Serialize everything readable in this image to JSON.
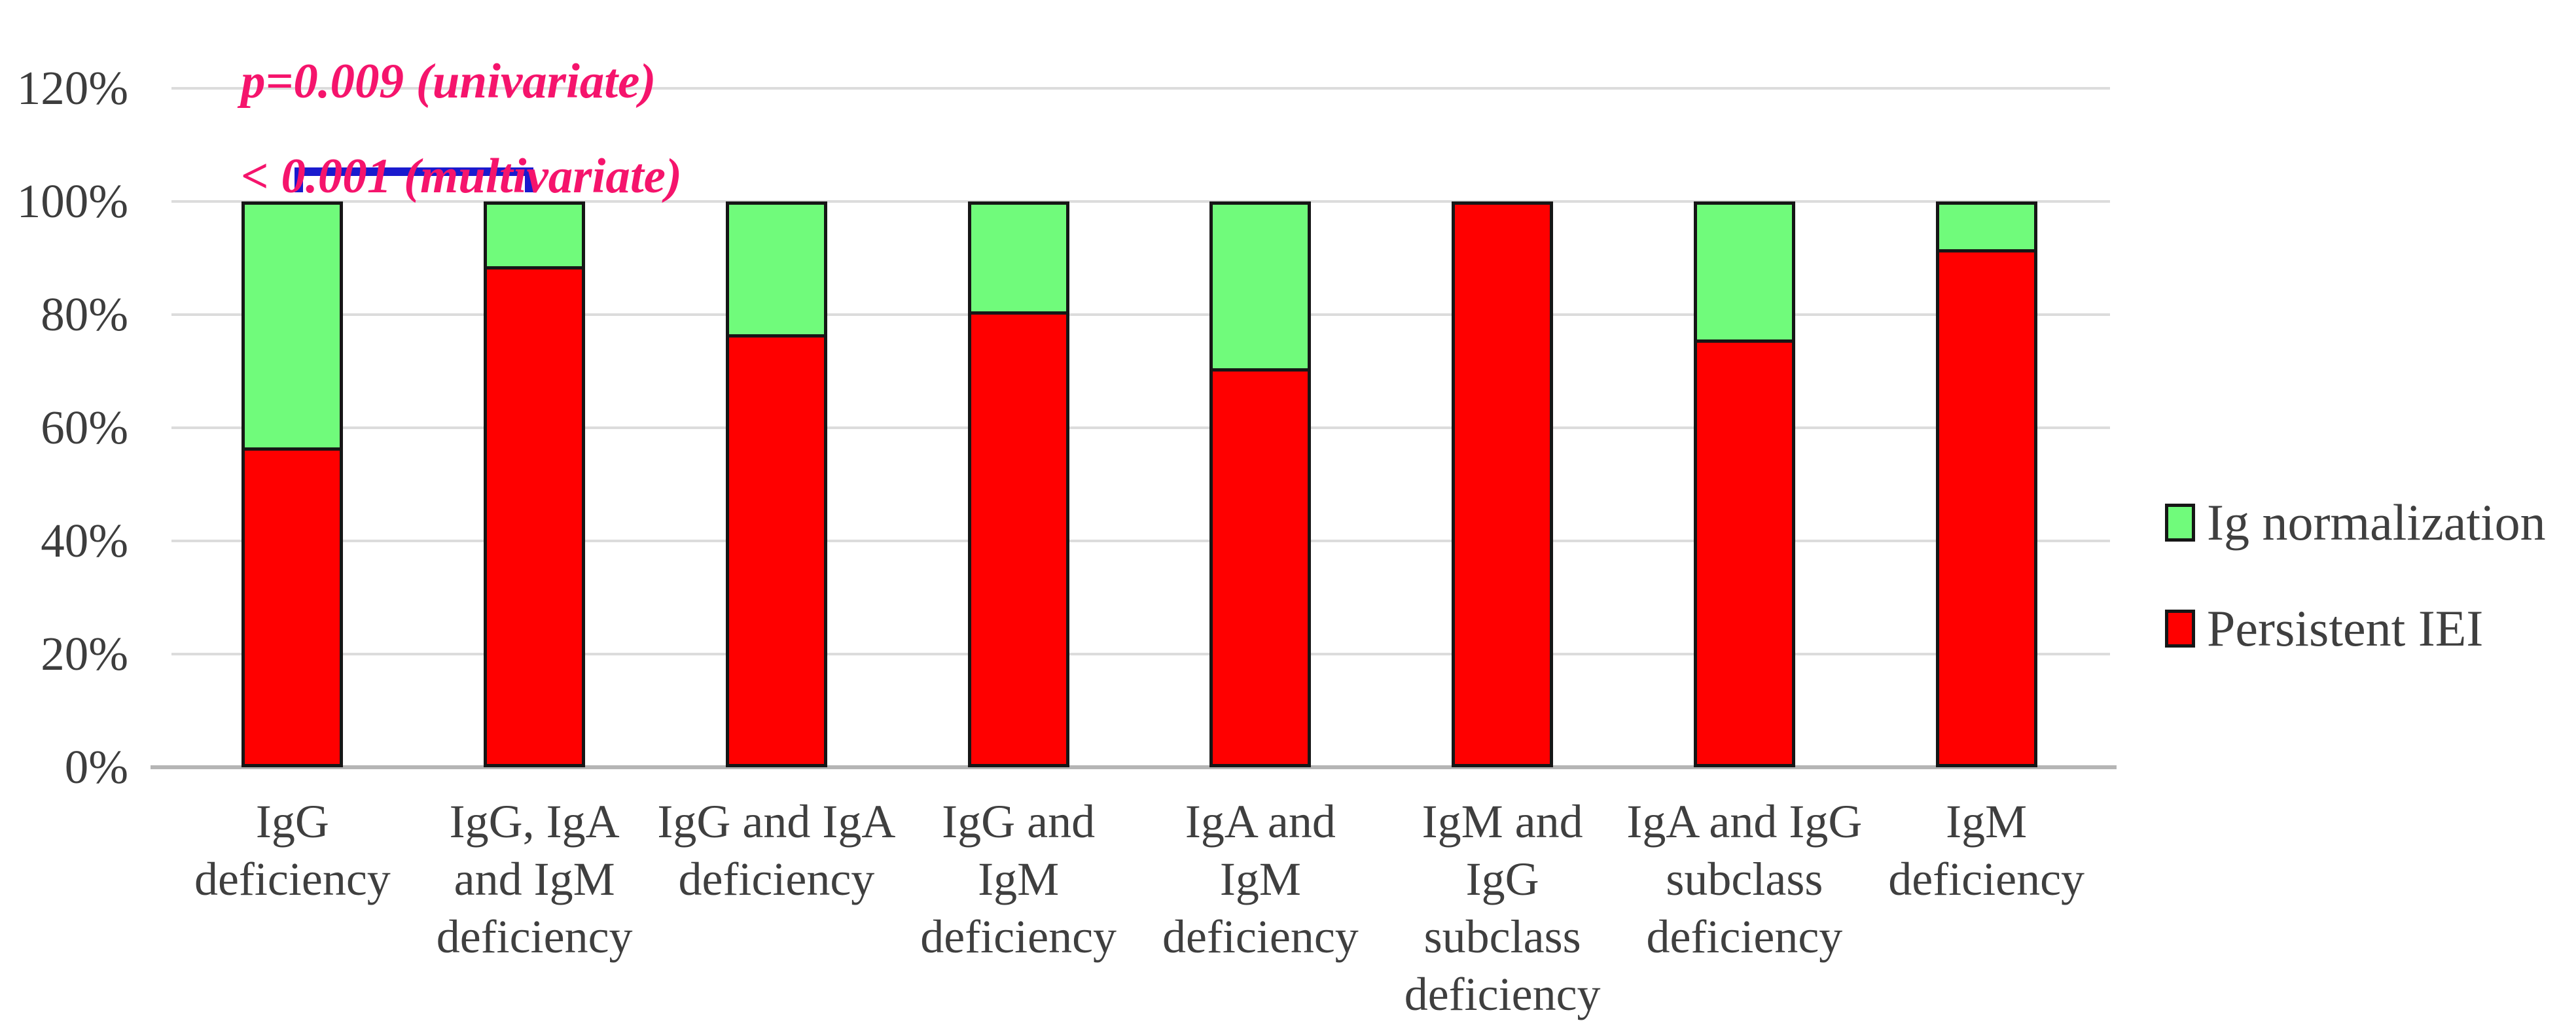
{
  "chart_data": {
    "type": "bar",
    "stacked": true,
    "orientation": "vertical",
    "grid": true,
    "legend_position": "right",
    "categories": [
      "IgG deficiency",
      "IgG, IgA and IgM deficiency",
      "IgG and IgA deficiency",
      "IgG and IgM deficiency",
      "IgA and IgM deficiency",
      "IgM and IgG subclass deficiency",
      "IgA and IgG subclass deficiency",
      "IgM deficiency"
    ],
    "category_lines": [
      [
        "IgG",
        "deficiency"
      ],
      [
        "IgG, IgA",
        "and IgM",
        "deficiency"
      ],
      [
        "IgG and IgA",
        "deficiency"
      ],
      [
        "IgG and",
        "IgM",
        "deficiency"
      ],
      [
        "IgA and",
        "IgM",
        "deficiency"
      ],
      [
        "IgM and",
        "IgG",
        "subclass",
        "deficiency"
      ],
      [
        "IgA and IgG",
        "subclass",
        "deficiency"
      ],
      [
        "IgM",
        "deficiency"
      ]
    ],
    "series": [
      {
        "name": "Ig normalization",
        "color": "#70fb7b",
        "values": [
          44,
          12,
          24,
          20,
          30,
          0,
          25,
          9
        ]
      },
      {
        "name": "Persistent IEI",
        "color": "#ff0000",
        "values": [
          56,
          88,
          76,
          80,
          70,
          100,
          75,
          91
        ]
      }
    ],
    "unit": "%",
    "y_axis": {
      "min": 0,
      "max": 120,
      "step": 20,
      "ticks": [
        "0%",
        "20%",
        "40%",
        "60%",
        "80%",
        "100%",
        "120%"
      ]
    }
  },
  "annotation": {
    "line1": "p=0.009 (univariate)",
    "line2": "< 0.001 (multivariate)",
    "color": "#f5146c",
    "compares": [
      "IgG deficiency",
      "IgG, IgA and IgM deficiency"
    ]
  },
  "bracket": {
    "color": "#1a1ace"
  },
  "colors": {
    "bar_outline": "#161616",
    "gridline": "#dcdcdc",
    "axis_line": "#b5b5b5",
    "text_gray": "#3f3f3f"
  }
}
